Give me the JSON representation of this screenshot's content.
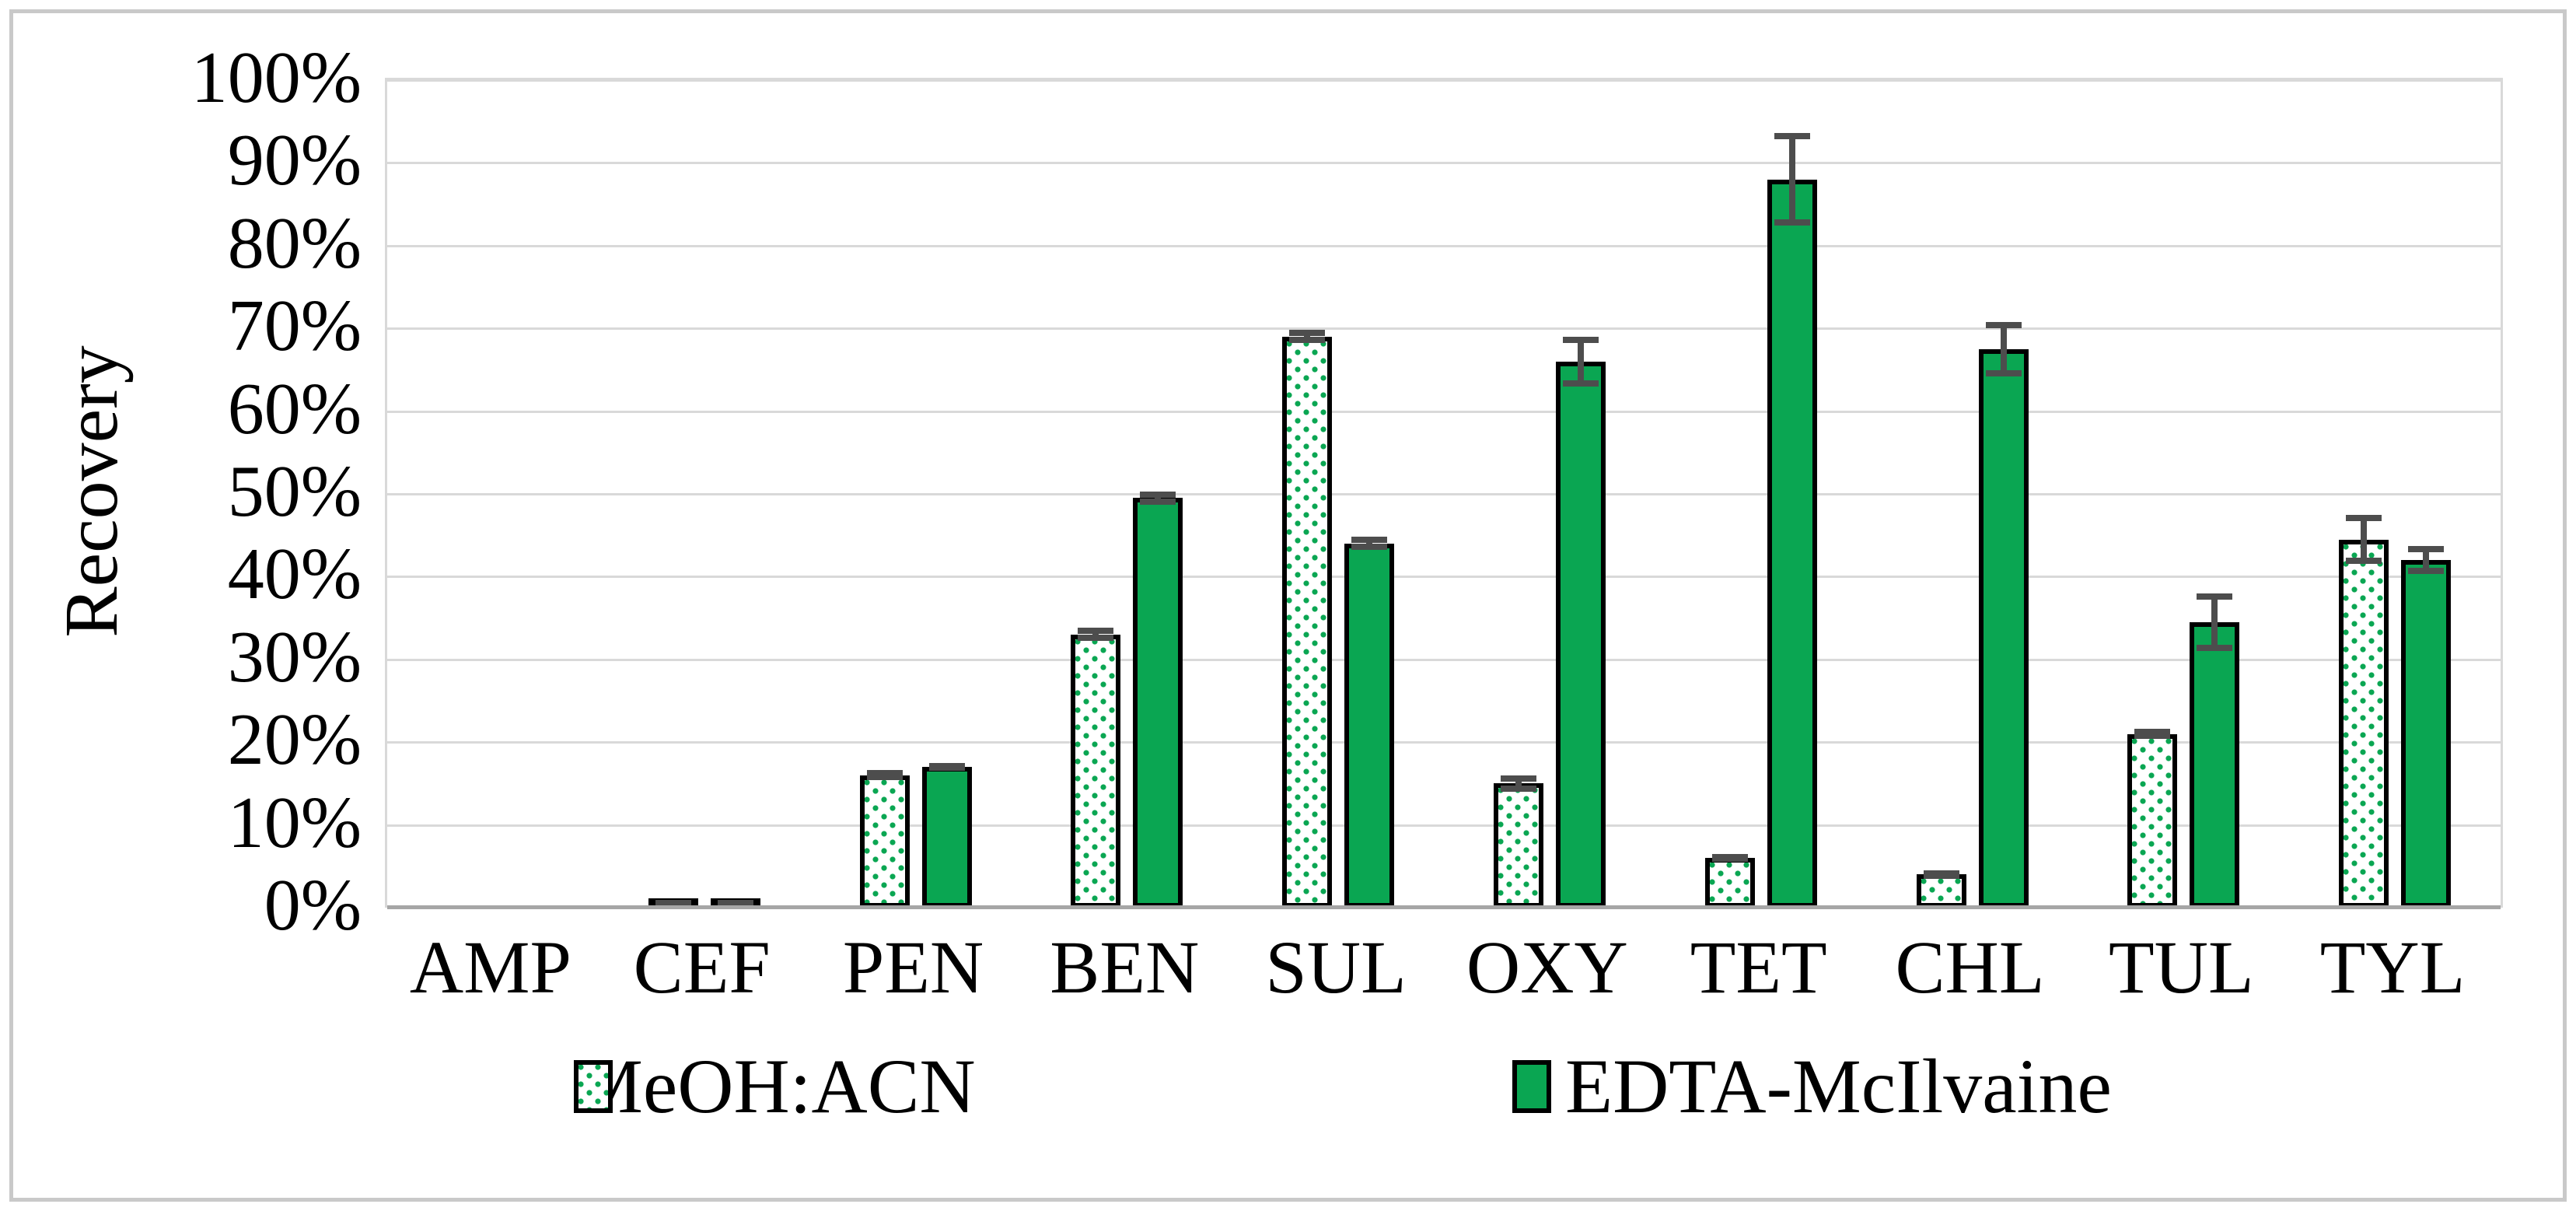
{
  "chart_data": {
    "type": "bar",
    "title": "",
    "ylabel": "Recovery",
    "xlabel": "",
    "categories": [
      "AMP",
      "CEF",
      "PEN",
      "BEN",
      "SUL",
      "OXY",
      "TET",
      "CHL",
      "TUL",
      "TYL"
    ],
    "series": [
      {
        "name": "MeOH:ACN",
        "style": "green-dot-pattern-on-white",
        "values": [
          0,
          0.5,
          16,
          33,
          69,
          15,
          6,
          4,
          21,
          44.5
        ],
        "errors": [
          0,
          0.3,
          0.6,
          0.8,
          0.8,
          1.0,
          0.5,
          0.5,
          0.6,
          3.0
        ]
      },
      {
        "name": "EDTA-McIlvaine",
        "style": "solid-green",
        "values": [
          0,
          0.5,
          17,
          49.5,
          44,
          66,
          88,
          67.5,
          34.5,
          42
        ],
        "errors": [
          0,
          0.3,
          0.5,
          0.8,
          0.8,
          3.0,
          5.6,
          3.3,
          3.5,
          1.7
        ]
      }
    ],
    "ylim": [
      0,
      100
    ],
    "ytick_step": 10,
    "yticks": [
      "0%",
      "10%",
      "20%",
      "30%",
      "40%",
      "50%",
      "60%",
      "70%",
      "80%",
      "90%",
      "100%"
    ],
    "grid": "horizontal-10pct",
    "legend_position": "bottom",
    "error_bars": true
  },
  "colors": {
    "series_green": "#0aa652",
    "bar_outline": "#000000",
    "error_bar": "#4d4d4d",
    "gridline": "#d9d9d9",
    "axis_line": "#a6a6a6",
    "frame_border": "#c9c9c9",
    "text": "#000000",
    "background": "#ffffff"
  }
}
